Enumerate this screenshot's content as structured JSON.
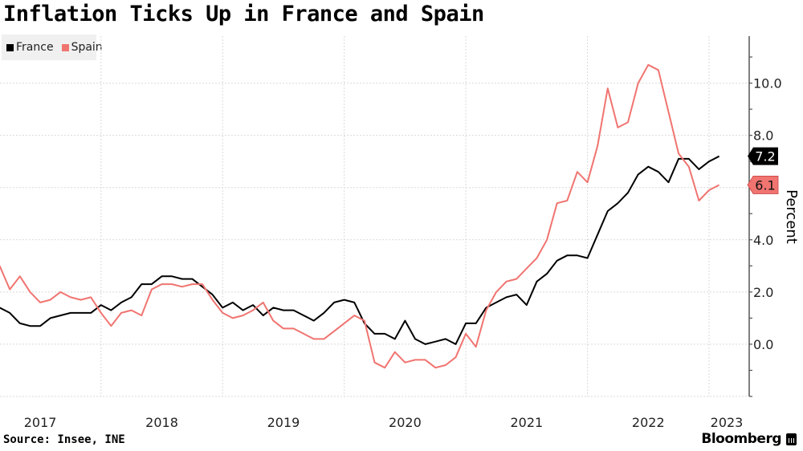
{
  "chart_data": {
    "type": "line",
    "title": "Inflation Ticks Up in France and Spain",
    "xlabel": "",
    "ylabel": "Percent",
    "x_start": "2017-03",
    "x_end": "2023-03",
    "frequency": "monthly",
    "x_tick_labels": [
      "2017",
      "2018",
      "2019",
      "2020",
      "2021",
      "2022",
      "2023"
    ],
    "y_tick_labels": [
      "0.0",
      "2.0",
      "4.0",
      "8.0",
      "10.0"
    ],
    "ylim": [
      -2,
      11.8
    ],
    "y_ticks": [
      -2,
      -1,
      0,
      1,
      2,
      3,
      4,
      5,
      6,
      7,
      8,
      9,
      10,
      11
    ],
    "y_labeled_ticks": [
      0,
      2,
      4,
      8,
      10
    ],
    "y_gridlines": [
      0,
      2,
      4,
      6,
      8,
      10,
      -2
    ],
    "grid": true,
    "legend_position": "top-left",
    "series": [
      {
        "name": "France",
        "color": "#000000",
        "last_value_label": "7.2",
        "values": [
          1.4,
          1.2,
          0.8,
          0.7,
          0.7,
          1.0,
          1.1,
          1.2,
          1.2,
          1.2,
          1.5,
          1.3,
          1.6,
          1.8,
          2.3,
          2.3,
          2.6,
          2.6,
          2.5,
          2.5,
          2.2,
          1.9,
          1.4,
          1.6,
          1.3,
          1.5,
          1.1,
          1.4,
          1.3,
          1.3,
          1.1,
          0.9,
          1.2,
          1.6,
          1.7,
          1.6,
          0.8,
          0.4,
          0.4,
          0.2,
          0.9,
          0.2,
          0.0,
          0.1,
          0.2,
          0.0,
          0.8,
          0.8,
          1.4,
          1.6,
          1.8,
          1.9,
          1.5,
          2.4,
          2.7,
          3.2,
          3.4,
          3.4,
          3.3,
          4.2,
          5.1,
          5.4,
          5.8,
          6.5,
          6.8,
          6.6,
          6.2,
          7.1,
          7.1,
          6.7,
          7.0,
          7.2
        ]
      },
      {
        "name": "Spain",
        "color": "#f07470",
        "last_value_label": "6.1",
        "values": [
          3.0,
          2.1,
          2.6,
          2.0,
          1.6,
          1.7,
          2.0,
          1.8,
          1.7,
          1.8,
          1.2,
          0.7,
          1.2,
          1.3,
          1.1,
          2.1,
          2.3,
          2.3,
          2.2,
          2.3,
          2.3,
          1.7,
          1.2,
          1.0,
          1.1,
          1.3,
          1.6,
          0.9,
          0.6,
          0.6,
          0.4,
          0.2,
          0.2,
          0.5,
          0.8,
          1.1,
          0.9,
          -0.7,
          -0.9,
          -0.3,
          -0.7,
          -0.6,
          -0.6,
          -0.9,
          -0.8,
          -0.5,
          0.4,
          -0.1,
          1.3,
          2.0,
          2.4,
          2.5,
          2.9,
          3.3,
          4.0,
          5.4,
          5.5,
          6.6,
          6.2,
          7.6,
          9.8,
          8.3,
          8.5,
          10.0,
          10.7,
          10.5,
          8.9,
          7.3,
          6.8,
          5.5,
          5.9,
          6.1
        ]
      }
    ]
  },
  "legend": {
    "items": [
      {
        "label": "France",
        "color": "#000000"
      },
      {
        "label": "Spain",
        "color": "#f07470"
      }
    ]
  },
  "footer": {
    "source": "Source: Insee, INE",
    "brand": "Bloomberg"
  }
}
